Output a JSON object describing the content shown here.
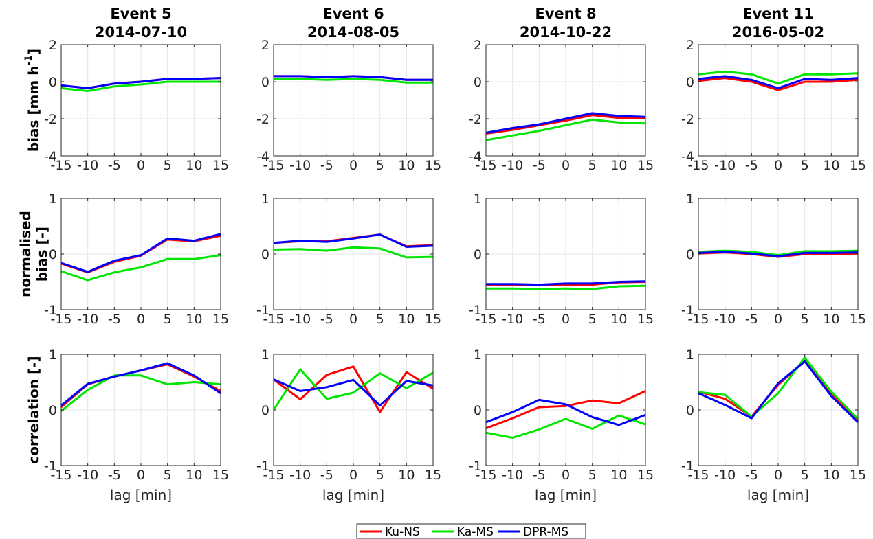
{
  "chart_data": {
    "type": "line",
    "legend_placement": "bottom-center",
    "grid": true,
    "colors": {
      "Ku-NS": "#ff0000",
      "Ka-MS": "#00e600",
      "DPR-MS": "#0000ff"
    },
    "series_names": [
      "Ku-NS",
      "Ka-MS",
      "DPR-MS"
    ],
    "x": [
      -15,
      -10,
      -5,
      0,
      5,
      10,
      15
    ],
    "x_ticks": [
      -15,
      -10,
      -5,
      0,
      5,
      10,
      15
    ],
    "x_tick_labels": [
      "-15",
      "-10",
      "-5",
      "0",
      "5",
      "10",
      "15"
    ],
    "xlabel": "lag [min]",
    "columns": [
      {
        "title_line1": "Event 5",
        "title_line2": "2014-07-10"
      },
      {
        "title_line1": "Event 6",
        "title_line2": "2014-08-05"
      },
      {
        "title_line1": "Event 8",
        "title_line2": "2014-10-22"
      },
      {
        "title_line1": "Event 11",
        "title_line2": "2016-05-02"
      }
    ],
    "rows": [
      {
        "ylabel_lines": [
          "bias [mm h"
        ],
        "ylabel_sup": "-1",
        "ylabel_after_sup": "]",
        "ylim": [
          -4,
          2
        ],
        "y_ticks": [
          -4,
          -2,
          0,
          2
        ],
        "y_tick_labels": [
          "-4",
          "-2",
          "0",
          "2"
        ]
      },
      {
        "ylabel_lines": [
          "normalised",
          "bias [-]"
        ],
        "ylim": [
          -1,
          1
        ],
        "y_ticks": [
          -1,
          0,
          1
        ],
        "y_tick_labels": [
          "-1",
          "0",
          "1"
        ]
      },
      {
        "ylabel_lines": [
          "correlation [-]"
        ],
        "ylim": [
          -1,
          1
        ],
        "y_ticks": [
          -1,
          0,
          1
        ],
        "y_tick_labels": [
          "-1",
          "0",
          "1"
        ]
      }
    ],
    "panels": [
      {
        "row": 0,
        "col": 0,
        "series": [
          {
            "name": "Ku-NS",
            "values": [
              -0.2,
              -0.35,
              -0.1,
              0.0,
              0.15,
              0.15,
              0.2
            ]
          },
          {
            "name": "Ka-MS",
            "values": [
              -0.35,
              -0.5,
              -0.25,
              -0.15,
              0.0,
              0.0,
              0.0
            ]
          },
          {
            "name": "DPR-MS",
            "values": [
              -0.2,
              -0.35,
              -0.1,
              0.0,
              0.15,
              0.15,
              0.2
            ]
          }
        ]
      },
      {
        "row": 0,
        "col": 1,
        "series": [
          {
            "name": "Ku-NS",
            "values": [
              0.3,
              0.3,
              0.25,
              0.3,
              0.25,
              0.1,
              0.1
            ]
          },
          {
            "name": "Ka-MS",
            "values": [
              0.15,
              0.15,
              0.1,
              0.15,
              0.1,
              -0.05,
              -0.05
            ]
          },
          {
            "name": "DPR-MS",
            "values": [
              0.3,
              0.3,
              0.25,
              0.3,
              0.25,
              0.1,
              0.1
            ]
          }
        ]
      },
      {
        "row": 0,
        "col": 2,
        "series": [
          {
            "name": "Ku-NS",
            "values": [
              -2.8,
              -2.6,
              -2.35,
              -2.1,
              -1.8,
              -1.95,
              -1.95
            ]
          },
          {
            "name": "Ka-MS",
            "values": [
              -3.15,
              -2.9,
              -2.65,
              -2.35,
              -2.05,
              -2.2,
              -2.25
            ]
          },
          {
            "name": "DPR-MS",
            "values": [
              -2.75,
              -2.5,
              -2.3,
              -2.0,
              -1.7,
              -1.85,
              -1.9
            ]
          }
        ]
      },
      {
        "row": 0,
        "col": 3,
        "series": [
          {
            "name": "Ku-NS",
            "values": [
              0.05,
              0.2,
              0.0,
              -0.45,
              0.0,
              0.0,
              0.1
            ]
          },
          {
            "name": "Ka-MS",
            "values": [
              0.4,
              0.55,
              0.4,
              -0.1,
              0.4,
              0.4,
              0.45
            ]
          },
          {
            "name": "DPR-MS",
            "values": [
              0.15,
              0.3,
              0.1,
              -0.35,
              0.15,
              0.1,
              0.2
            ]
          }
        ]
      },
      {
        "row": 1,
        "col": 0,
        "series": [
          {
            "name": "Ku-NS",
            "values": [
              -0.17,
              -0.33,
              -0.14,
              -0.03,
              0.26,
              0.23,
              0.33
            ]
          },
          {
            "name": "Ka-MS",
            "values": [
              -0.31,
              -0.47,
              -0.33,
              -0.24,
              -0.09,
              -0.09,
              -0.02
            ]
          },
          {
            "name": "DPR-MS",
            "values": [
              -0.16,
              -0.32,
              -0.12,
              -0.02,
              0.28,
              0.24,
              0.36
            ]
          }
        ]
      },
      {
        "row": 1,
        "col": 1,
        "series": [
          {
            "name": "Ku-NS",
            "values": [
              0.2,
              0.23,
              0.23,
              0.29,
              0.35,
              0.14,
              0.16
            ]
          },
          {
            "name": "Ka-MS",
            "values": [
              0.08,
              0.09,
              0.06,
              0.12,
              0.1,
              -0.06,
              -0.05
            ]
          },
          {
            "name": "DPR-MS",
            "values": [
              0.2,
              0.24,
              0.22,
              0.28,
              0.35,
              0.13,
              0.15
            ]
          }
        ]
      },
      {
        "row": 1,
        "col": 2,
        "series": [
          {
            "name": "Ku-NS",
            "values": [
              -0.56,
              -0.56,
              -0.56,
              -0.55,
              -0.55,
              -0.51,
              -0.5
            ]
          },
          {
            "name": "Ka-MS",
            "values": [
              -0.62,
              -0.62,
              -0.63,
              -0.62,
              -0.63,
              -0.58,
              -0.57
            ]
          },
          {
            "name": "DPR-MS",
            "values": [
              -0.54,
              -0.54,
              -0.55,
              -0.53,
              -0.53,
              -0.5,
              -0.49
            ]
          }
        ]
      },
      {
        "row": 1,
        "col": 3,
        "series": [
          {
            "name": "Ku-NS",
            "values": [
              0.01,
              0.03,
              0.0,
              -0.05,
              0.0,
              0.0,
              0.01
            ]
          },
          {
            "name": "Ka-MS",
            "values": [
              0.04,
              0.06,
              0.04,
              -0.02,
              0.05,
              0.05,
              0.06
            ]
          },
          {
            "name": "DPR-MS",
            "values": [
              0.02,
              0.04,
              0.01,
              -0.04,
              0.02,
              0.02,
              0.03
            ]
          }
        ]
      },
      {
        "row": 2,
        "col": 0,
        "series": [
          {
            "name": "Ku-NS",
            "values": [
              0.05,
              0.46,
              0.6,
              0.71,
              0.82,
              0.6,
              0.34
            ]
          },
          {
            "name": "Ka-MS",
            "values": [
              -0.02,
              0.36,
              0.62,
              0.62,
              0.46,
              0.5,
              0.46
            ]
          },
          {
            "name": "DPR-MS",
            "values": [
              0.08,
              0.47,
              0.6,
              0.71,
              0.84,
              0.62,
              0.3
            ]
          }
        ]
      },
      {
        "row": 2,
        "col": 1,
        "series": [
          {
            "name": "Ku-NS",
            "values": [
              0.55,
              0.19,
              0.63,
              0.78,
              -0.04,
              0.68,
              0.38
            ]
          },
          {
            "name": "Ka-MS",
            "values": [
              0.0,
              0.73,
              0.2,
              0.31,
              0.66,
              0.39,
              0.67
            ]
          },
          {
            "name": "DPR-MS",
            "values": [
              0.55,
              0.34,
              0.41,
              0.54,
              0.08,
              0.52,
              0.44
            ]
          }
        ]
      },
      {
        "row": 2,
        "col": 2,
        "series": [
          {
            "name": "Ku-NS",
            "values": [
              -0.33,
              -0.15,
              0.05,
              0.07,
              0.17,
              0.12,
              0.34
            ]
          },
          {
            "name": "Ka-MS",
            "values": [
              -0.41,
              -0.5,
              -0.35,
              -0.16,
              -0.34,
              -0.1,
              -0.26
            ]
          },
          {
            "name": "DPR-MS",
            "values": [
              -0.22,
              -0.04,
              0.18,
              0.1,
              -0.13,
              -0.27,
              -0.09
            ]
          }
        ]
      },
      {
        "row": 2,
        "col": 3,
        "series": [
          {
            "name": "Ku-NS",
            "values": [
              0.33,
              0.2,
              -0.12,
              0.45,
              0.88,
              0.3,
              -0.2
            ]
          },
          {
            "name": "Ka-MS",
            "values": [
              0.32,
              0.27,
              -0.12,
              0.3,
              0.94,
              0.33,
              -0.16
            ]
          },
          {
            "name": "DPR-MS",
            "values": [
              0.3,
              0.09,
              -0.15,
              0.48,
              0.87,
              0.25,
              -0.22
            ]
          }
        ]
      }
    ]
  }
}
